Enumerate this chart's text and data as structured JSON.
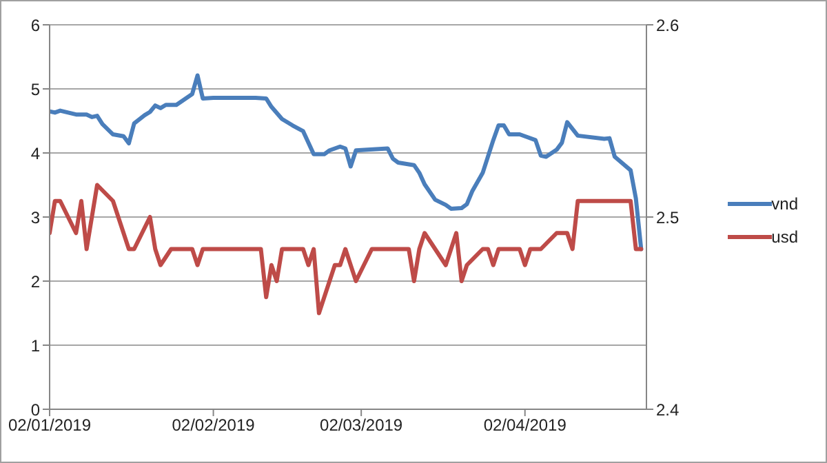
{
  "chart_data": {
    "type": "line",
    "xlim": [
      "2019-01-02",
      "2019-04-25"
    ],
    "xticks": [
      {
        "value": "2019-01-02",
        "label": "02/01/2019"
      },
      {
        "value": "2019-02-02",
        "label": "02/02/2019"
      },
      {
        "value": "2019-03-02",
        "label": "02/03/2019"
      },
      {
        "value": "2019-04-02",
        "label": "02/04/2019"
      }
    ],
    "ylim": [
      0,
      6
    ],
    "yticks": [
      0,
      1,
      2,
      3,
      4,
      5,
      6
    ],
    "y2lim": [
      2.4,
      2.6
    ],
    "y2ticks": [
      2.4,
      2.5,
      2.6
    ],
    "grid": "y",
    "legend": "right",
    "line_style": "solid",
    "series": [
      {
        "name": "vnd",
        "color": "#4a7ebb",
        "x": [
          "2019-01-02",
          "2019-01-03",
          "2019-01-04",
          "2019-01-07",
          "2019-01-09",
          "2019-01-10",
          "2019-01-11",
          "2019-01-12",
          "2019-01-14",
          "2019-01-16",
          "2019-01-17",
          "2019-01-18",
          "2019-01-20",
          "2019-01-21",
          "2019-01-22",
          "2019-01-23",
          "2019-01-24",
          "2019-01-26",
          "2019-01-29",
          "2019-01-30",
          "2019-01-31",
          "2019-02-02",
          "2019-02-10",
          "2019-02-12",
          "2019-02-13",
          "2019-02-15",
          "2019-02-17",
          "2019-02-19",
          "2019-02-21",
          "2019-02-23",
          "2019-02-24",
          "2019-02-26",
          "2019-02-27",
          "2019-02-28",
          "2019-03-01",
          "2019-03-07",
          "2019-03-08",
          "2019-03-09",
          "2019-03-12",
          "2019-03-13",
          "2019-03-14",
          "2019-03-16",
          "2019-03-18",
          "2019-03-19",
          "2019-03-21",
          "2019-03-22",
          "2019-03-23",
          "2019-03-25",
          "2019-03-27",
          "2019-03-28",
          "2019-03-29",
          "2019-03-30",
          "2019-04-01",
          "2019-04-04",
          "2019-04-05",
          "2019-04-06",
          "2019-04-08",
          "2019-04-09",
          "2019-04-10",
          "2019-04-12",
          "2019-04-17",
          "2019-04-18",
          "2019-04-19",
          "2019-04-22",
          "2019-04-23",
          "2019-04-24"
        ],
        "values": [
          4.65,
          4.63,
          4.66,
          4.6,
          4.6,
          4.56,
          4.58,
          4.45,
          4.29,
          4.26,
          4.15,
          4.46,
          4.59,
          4.64,
          4.74,
          4.7,
          4.75,
          4.75,
          4.92,
          5.21,
          4.85,
          4.86,
          4.86,
          4.85,
          4.72,
          4.53,
          4.43,
          4.34,
          3.98,
          3.98,
          4.04,
          4.1,
          4.07,
          3.79,
          4.04,
          4.07,
          3.91,
          3.85,
          3.81,
          3.69,
          3.51,
          3.27,
          3.19,
          3.13,
          3.14,
          3.2,
          3.4,
          3.69,
          4.2,
          4.43,
          4.43,
          4.29,
          4.29,
          4.2,
          3.96,
          3.94,
          4.05,
          4.16,
          4.48,
          4.27,
          4.22,
          4.23,
          3.94,
          3.73,
          3.29,
          2.5
        ]
      },
      {
        "name": "usd",
        "color": "#be4b48",
        "x": [
          "2019-01-02",
          "2019-01-03",
          "2019-01-04",
          "2019-01-07",
          "2019-01-08",
          "2019-01-09",
          "2019-01-11",
          "2019-01-14",
          "2019-01-17",
          "2019-01-18",
          "2019-01-21",
          "2019-01-22",
          "2019-01-23",
          "2019-01-25",
          "2019-01-29",
          "2019-01-30",
          "2019-01-31",
          "2019-02-11",
          "2019-02-12",
          "2019-02-13",
          "2019-02-14",
          "2019-02-15",
          "2019-02-19",
          "2019-02-20",
          "2019-02-21",
          "2019-02-22",
          "2019-02-25",
          "2019-02-26",
          "2019-02-27",
          "2019-03-01",
          "2019-03-04",
          "2019-03-11",
          "2019-03-12",
          "2019-03-13",
          "2019-03-14",
          "2019-03-16",
          "2019-03-18",
          "2019-03-20",
          "2019-03-21",
          "2019-03-22",
          "2019-03-25",
          "2019-03-26",
          "2019-03-27",
          "2019-03-28",
          "2019-04-01",
          "2019-04-02",
          "2019-04-03",
          "2019-04-05",
          "2019-04-08",
          "2019-04-10",
          "2019-04-11",
          "2019-04-12",
          "2019-04-22",
          "2019-04-23",
          "2019-04-24"
        ],
        "values": [
          2.75,
          3.25,
          3.25,
          2.75,
          3.25,
          2.5,
          3.5,
          3.25,
          2.5,
          2.5,
          3.0,
          2.5,
          2.25,
          2.5,
          2.5,
          2.25,
          2.5,
          2.5,
          1.75,
          2.25,
          2.0,
          2.5,
          2.5,
          2.25,
          2.5,
          1.5,
          2.25,
          2.25,
          2.5,
          2.0,
          2.5,
          2.5,
          2.0,
          2.5,
          2.75,
          2.5,
          2.25,
          2.75,
          2.0,
          2.25,
          2.5,
          2.5,
          2.25,
          2.5,
          2.5,
          2.25,
          2.5,
          2.5,
          2.75,
          2.75,
          2.5,
          3.25,
          3.25,
          2.5,
          2.5
        ]
      }
    ]
  }
}
